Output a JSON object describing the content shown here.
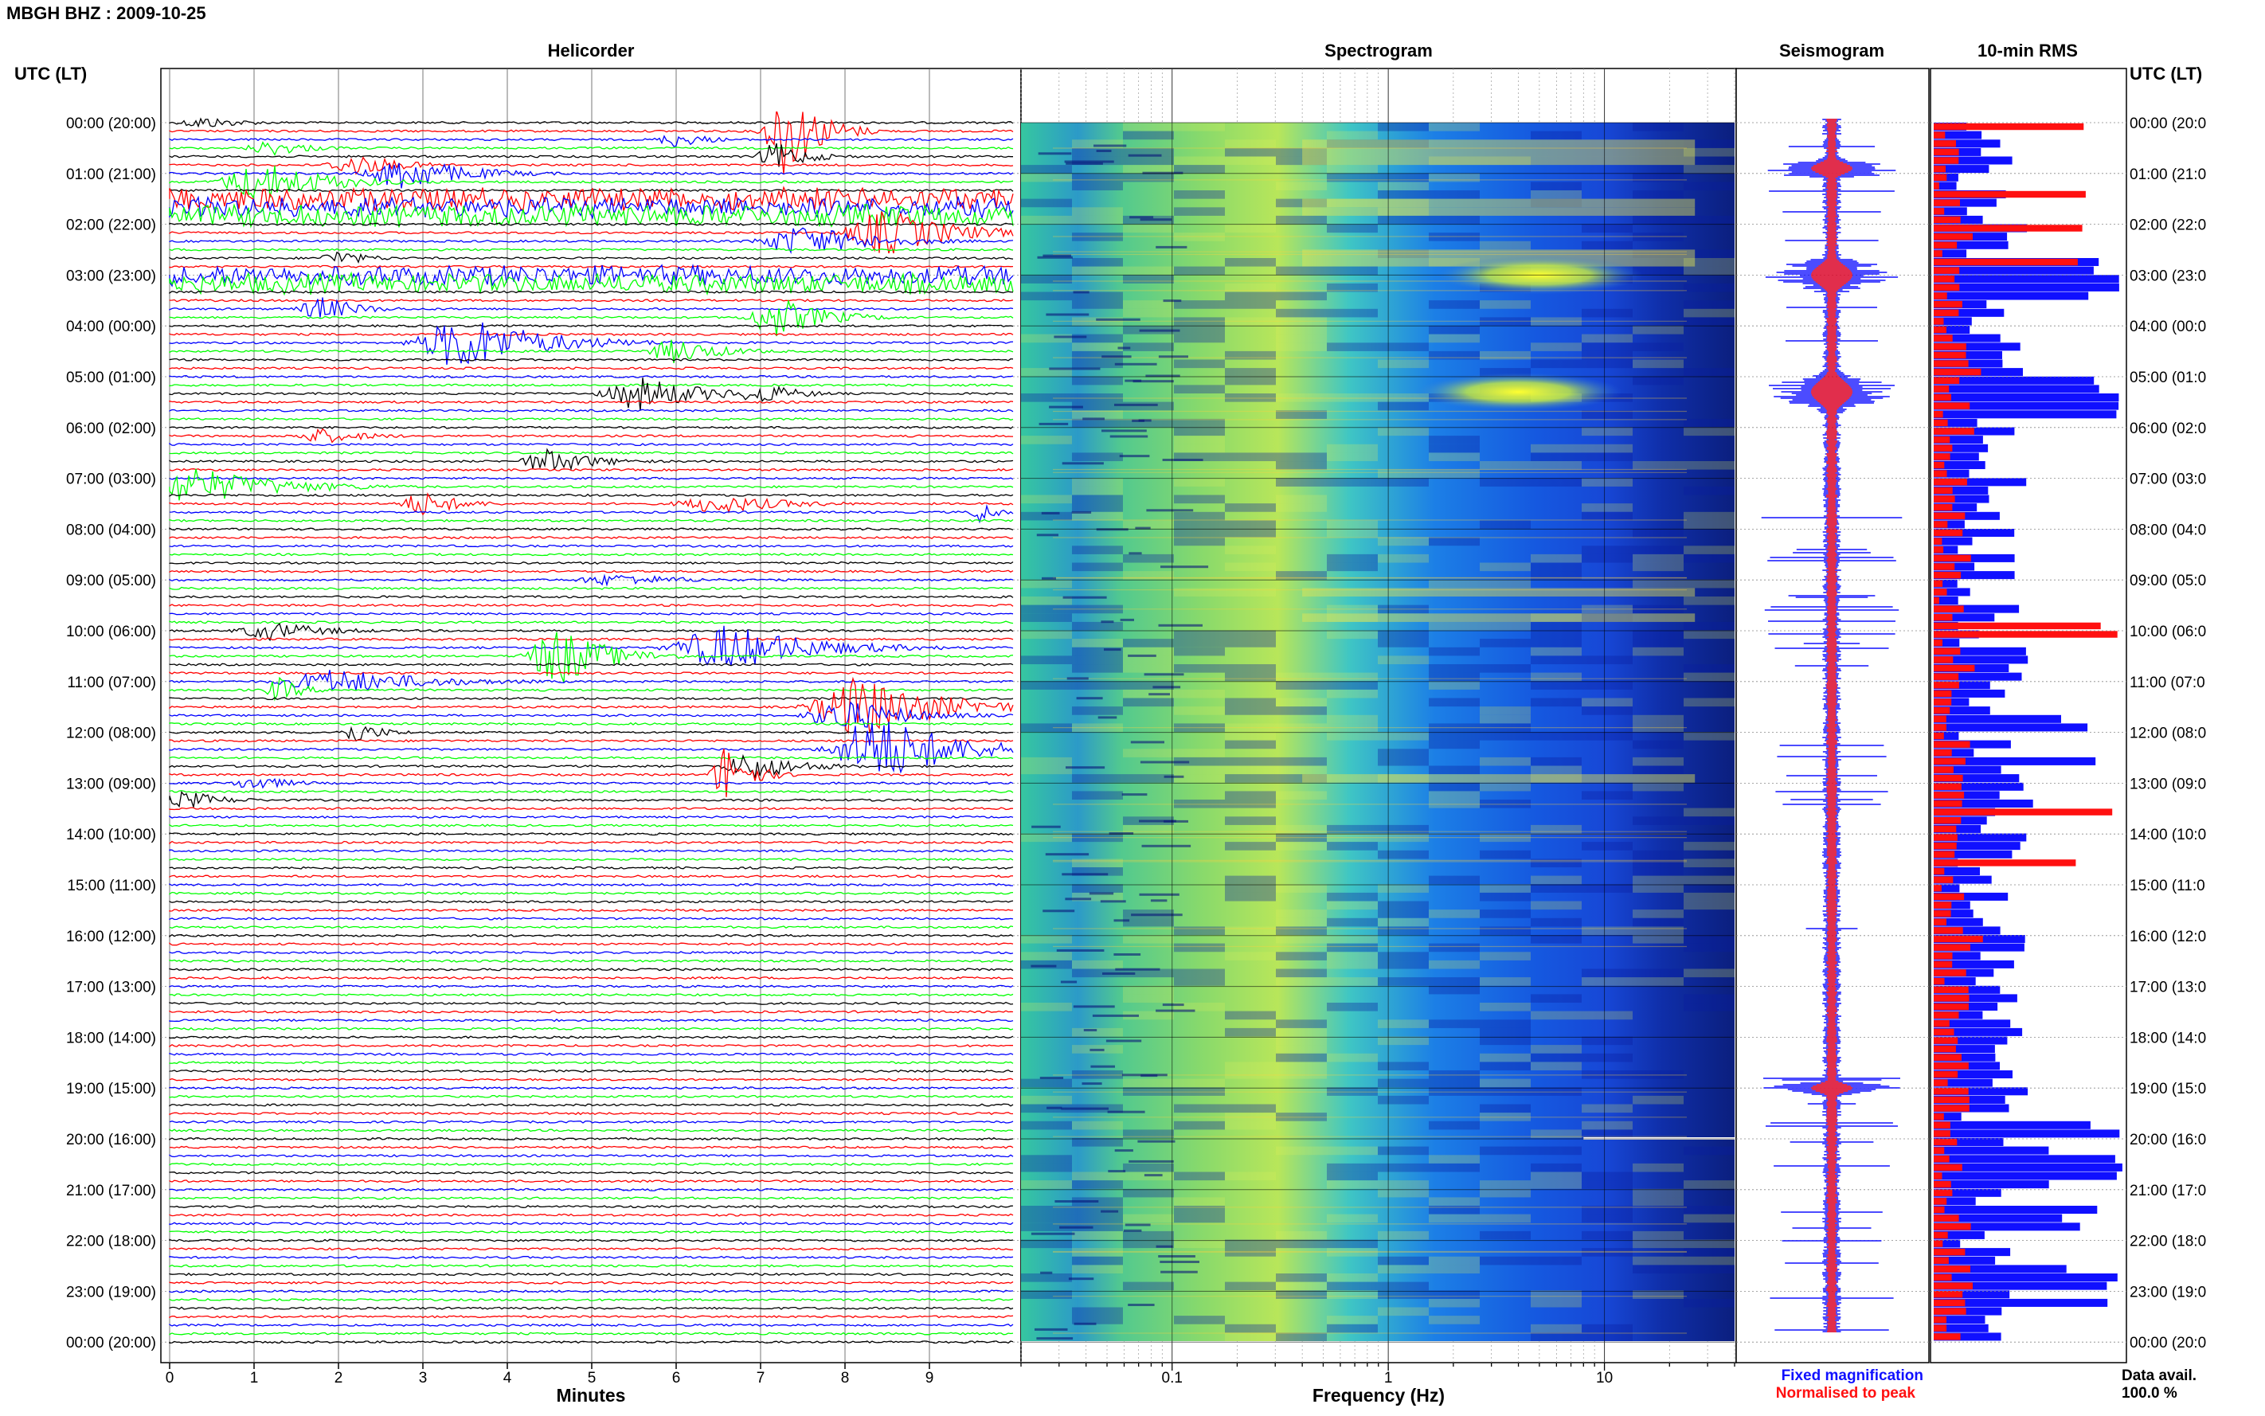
{
  "figure_title": "MBGH BHZ : 2009-10-25",
  "time_axis_label": "UTC (LT)",
  "hour_labels": [
    "00:00 (20:00)",
    "01:00 (21:00)",
    "02:00 (22:00)",
    "03:00 (23:00)",
    "04:00 (00:00)",
    "05:00 (01:00)",
    "06:00 (02:00)",
    "07:00 (03:00)",
    "08:00 (04:00)",
    "09:00 (05:00)",
    "10:00 (06:00)",
    "11:00 (07:00)",
    "12:00 (08:00)",
    "13:00 (09:00)",
    "14:00 (10:00)",
    "15:00 (11:00)",
    "16:00 (12:00)",
    "17:00 (13:00)",
    "18:00 (14:00)",
    "19:00 (15:00)",
    "20:00 (16:00)",
    "21:00 (17:00)",
    "22:00 (18:00)",
    "23:00 (19:00)",
    "00:00 (20:00)"
  ],
  "hour_labels_right": [
    "00:00 (20:0",
    "01:00 (21:0",
    "02:00 (22:0",
    "03:00 (23:0",
    "04:00 (00:0",
    "05:00 (01:0",
    "06:00 (02:0",
    "07:00 (03:0",
    "08:00 (04:0",
    "09:00 (05:0",
    "10:00 (06:0",
    "11:00 (07:0",
    "12:00 (08:0",
    "13:00 (09:0",
    "14:00 (10:0",
    "15:00 (11:0",
    "16:00 (12:0",
    "17:00 (13:0",
    "18:00 (14:0",
    "19:00 (15:0",
    "20:00 (16:0",
    "21:00 (17:0",
    "22:00 (18:0",
    "23:00 (19:0",
    "00:00 (20:0"
  ],
  "panels": {
    "helicorder_title": "Helicorder",
    "spectrogram_title": "Spectrogram",
    "seismogram_title": "Seismogram",
    "rms_title": "10-min RMS"
  },
  "legend": {
    "fixed": "Fixed magnification",
    "normalised": "Normalised to peak",
    "fixed_color": "#1010ff",
    "normalised_color": "#ff1010"
  },
  "data_avail": {
    "label": "Data avail.",
    "value": "100.0 %"
  },
  "chart_data": [
    {
      "type": "line",
      "title": "Helicorder",
      "xlabel": "Minutes",
      "ylabel": "UTC (LT)",
      "xlim": [
        0,
        10
      ],
      "x_ticks": [
        "0",
        "1",
        "2",
        "3",
        "4",
        "5",
        "6",
        "7",
        "8",
        "9"
      ],
      "trace_colors": [
        "#000000",
        "#ff0000",
        "#0000ff",
        "#00ff00"
      ],
      "rows_per_hour": 6,
      "grid": true,
      "bursts": [
        {
          "row": 0,
          "x": 0.4,
          "w": 0.9,
          "amp": 8
        },
        {
          "row": 1,
          "x": 7.3,
          "w": 0.7,
          "amp": 60,
          "tall": true
        },
        {
          "row": 2,
          "x": 6.0,
          "w": 0.7,
          "amp": 10
        },
        {
          "row": 3,
          "x": 1.2,
          "w": 0.9,
          "amp": 10
        },
        {
          "row": 4,
          "x": 7.2,
          "w": 0.7,
          "amp": 18
        },
        {
          "row": 5,
          "x": 2.2,
          "w": 1.0,
          "amp": 14
        },
        {
          "row": 6,
          "x": 2.8,
          "w": 1.3,
          "amp": 22
        },
        {
          "row": 7,
          "x": 1.1,
          "w": 1.4,
          "amp": 26
        },
        {
          "row": 9,
          "x": 0.5,
          "w": 10,
          "amp": 16,
          "cont": true
        },
        {
          "row": 10,
          "x": 0.5,
          "w": 10,
          "amp": 14,
          "cont": true
        },
        {
          "row": 11,
          "x": 0.5,
          "w": 10,
          "amp": 16,
          "cont": true
        },
        {
          "row": 13,
          "x": 8.5,
          "w": 1.4,
          "amp": 30
        },
        {
          "row": 14,
          "x": 7.5,
          "w": 1.5,
          "amp": 20
        },
        {
          "row": 16,
          "x": 2.0,
          "w": 0.7,
          "amp": 10
        },
        {
          "row": 18,
          "x": 0.5,
          "w": 10,
          "amp": 14,
          "cont": true
        },
        {
          "row": 19,
          "x": 0.5,
          "w": 10,
          "amp": 14,
          "cont": true
        },
        {
          "row": 22,
          "x": 1.8,
          "w": 0.8,
          "amp": 16
        },
        {
          "row": 23,
          "x": 7.2,
          "w": 1.0,
          "amp": 26
        },
        {
          "row": 26,
          "x": 3.5,
          "w": 1.6,
          "amp": 36
        },
        {
          "row": 27,
          "x": 6.0,
          "w": 1.0,
          "amp": 16
        },
        {
          "row": 32,
          "x": 5.6,
          "w": 1.3,
          "amp": 22
        },
        {
          "row": 32,
          "x": 7.0,
          "w": 0.8,
          "amp": 14
        },
        {
          "row": 37,
          "x": 1.8,
          "w": 1.0,
          "amp": 10
        },
        {
          "row": 40,
          "x": 4.5,
          "w": 1.0,
          "amp": 16
        },
        {
          "row": 43,
          "x": 0.3,
          "w": 1.8,
          "amp": 24
        },
        {
          "row": 45,
          "x": 3.0,
          "w": 0.8,
          "amp": 16
        },
        {
          "row": 45,
          "x": 6.5,
          "w": 1.5,
          "amp": 12
        },
        {
          "row": 46,
          "x": 9.6,
          "w": 0.4,
          "amp": 14
        },
        {
          "row": 54,
          "x": 5.3,
          "w": 1.5,
          "amp": 8
        },
        {
          "row": 60,
          "x": 1.2,
          "w": 1.2,
          "amp": 12
        },
        {
          "row": 62,
          "x": 6.6,
          "w": 1.8,
          "amp": 30
        },
        {
          "row": 63,
          "x": 4.6,
          "w": 1.0,
          "amp": 40,
          "tall": true
        },
        {
          "row": 66,
          "x": 2.0,
          "w": 2.0,
          "amp": 16
        },
        {
          "row": 67,
          "x": 1.3,
          "w": 0.5,
          "amp": 16
        },
        {
          "row": 69,
          "x": 8.2,
          "w": 1.6,
          "amp": 40
        },
        {
          "row": 70,
          "x": 8.0,
          "w": 1.3,
          "amp": 22
        },
        {
          "row": 72,
          "x": 2.2,
          "w": 0.6,
          "amp": 14
        },
        {
          "row": 74,
          "x": 8.4,
          "w": 1.5,
          "amp": 46,
          "tall": true
        },
        {
          "row": 76,
          "x": 6.9,
          "w": 1.0,
          "amp": 18
        },
        {
          "row": 77,
          "x": 6.6,
          "w": 0.5,
          "amp": 40,
          "tall": true
        },
        {
          "row": 78,
          "x": 1.0,
          "w": 0.8,
          "amp": 10
        },
        {
          "row": 80,
          "x": 0.2,
          "w": 0.8,
          "amp": 12
        }
      ]
    },
    {
      "type": "heatmap",
      "title": "Spectrogram",
      "xlabel": "Frequency (Hz)",
      "x_scale": "log",
      "xlim": [
        0.02,
        40
      ],
      "x_ticks": [
        "0.1",
        "1",
        "10"
      ],
      "band_freq_hz": [
        0.4,
        8
      ],
      "energetic_rows": [
        2,
        3,
        4,
        9,
        10,
        15,
        16,
        55,
        58,
        77
      ],
      "bright_patches": [
        {
          "hour": 3.0,
          "freq_hz": 5
        },
        {
          "hour": 5.3,
          "freq_hz": 4
        }
      ],
      "white_gap_hour": 20.0
    },
    {
      "type": "line",
      "title": "Seismogram",
      "legend": [
        "Fixed magnification",
        "Normalised to peak"
      ],
      "peaks": [
        {
          "hour": 3.0,
          "width": 0.9
        },
        {
          "hour": 5.3,
          "width": 1.0
        },
        {
          "hour": 0.9,
          "width": 0.5
        },
        {
          "hour": 19.0,
          "width": 0.4
        }
      ]
    },
    {
      "type": "bar",
      "title": "10-min RMS",
      "orientation": "horizontal",
      "bins": 144,
      "series": [
        {
          "name": "Fixed magnification",
          "color": "#1010ff"
        },
        {
          "name": "Normalised to peak",
          "color": "#ff1010"
        }
      ]
    }
  ]
}
